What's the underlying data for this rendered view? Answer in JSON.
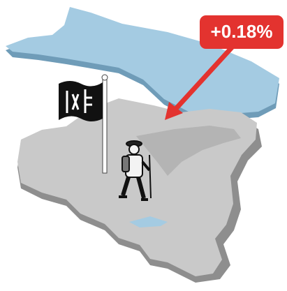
{
  "callout": {
    "text": "+0.18%"
  }
}
